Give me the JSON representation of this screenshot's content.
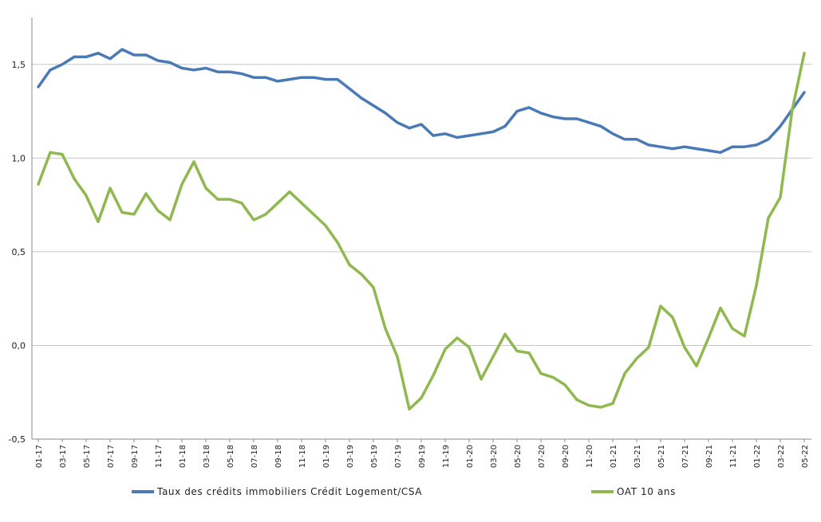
{
  "chart_data": {
    "type": "line",
    "title": "",
    "xlabel": "",
    "ylabel": "",
    "ylim": [
      -0.5,
      1.75
    ],
    "yticks": [
      "-0,5",
      "0,0",
      "0,5",
      "1,0",
      "1,5"
    ],
    "ytick_values": [
      -0.5,
      0.0,
      0.5,
      1.0,
      1.5
    ],
    "grid": true,
    "legend_position": "bottom",
    "x": [
      "01-17",
      "02-17",
      "03-17",
      "04-17",
      "05-17",
      "06-17",
      "07-17",
      "08-17",
      "09-17",
      "10-17",
      "11-17",
      "12-17",
      "01-18",
      "02-18",
      "03-18",
      "04-18",
      "05-18",
      "06-18",
      "07-18",
      "08-18",
      "09-18",
      "10-18",
      "11-18",
      "12-18",
      "01-19",
      "02-19",
      "03-19",
      "04-19",
      "05-19",
      "06-19",
      "07-19",
      "08-19",
      "09-19",
      "10-19",
      "11-19",
      "12-19",
      "01-20",
      "02-20",
      "03-20",
      "04-20",
      "05-20",
      "06-20",
      "07-20",
      "08-20",
      "09-20",
      "10-20",
      "11-20",
      "12-20",
      "01-21",
      "02-21",
      "03-21",
      "04-21",
      "05-21",
      "06-21",
      "07-21",
      "08-21",
      "09-21",
      "10-21",
      "11-21",
      "12-21",
      "01-22",
      "02-22",
      "03-22",
      "04-22",
      "05-22"
    ],
    "xtick_labels": [
      "01-17",
      "03-17",
      "05-17",
      "07-17",
      "09-17",
      "11-17",
      "01-18",
      "03-18",
      "05-18",
      "07-18",
      "09-18",
      "11-18",
      "01-19",
      "03-19",
      "05-19",
      "07-19",
      "09-19",
      "11-19",
      "01-20",
      "03-20",
      "05-20",
      "07-20",
      "09-20",
      "11-20",
      "01-21",
      "03-21",
      "05-21",
      "07-21",
      "09-21",
      "11-21",
      "01-22",
      "03-22",
      "05-22"
    ],
    "series": [
      {
        "name": "Taux des crédits immobiliers Crédit Logement/CSA",
        "color": "#4a7ab5",
        "values": [
          1.38,
          1.47,
          1.5,
          1.54,
          1.54,
          1.56,
          1.53,
          1.58,
          1.55,
          1.55,
          1.52,
          1.51,
          1.48,
          1.47,
          1.48,
          1.46,
          1.46,
          1.45,
          1.43,
          1.43,
          1.41,
          1.42,
          1.43,
          1.43,
          1.42,
          1.42,
          1.37,
          1.32,
          1.28,
          1.24,
          1.19,
          1.16,
          1.18,
          1.12,
          1.13,
          1.11,
          1.12,
          1.13,
          1.14,
          1.17,
          1.25,
          1.27,
          1.24,
          1.22,
          1.21,
          1.21,
          1.19,
          1.17,
          1.13,
          1.1,
          1.1,
          1.07,
          1.06,
          1.05,
          1.06,
          1.05,
          1.04,
          1.03,
          1.06,
          1.06,
          1.07,
          1.1,
          1.17,
          1.26,
          1.35
        ]
      },
      {
        "name": "OAT 10 ans",
        "color": "#8fb84e",
        "values": [
          0.86,
          1.03,
          1.02,
          0.89,
          0.8,
          0.66,
          0.84,
          0.71,
          0.7,
          0.81,
          0.72,
          0.67,
          0.86,
          0.98,
          0.84,
          0.78,
          0.78,
          0.76,
          0.67,
          0.7,
          0.76,
          0.82,
          0.76,
          0.7,
          0.64,
          0.55,
          0.43,
          0.38,
          0.31,
          0.09,
          -0.06,
          -0.34,
          -0.28,
          -0.16,
          -0.02,
          0.04,
          -0.01,
          -0.18,
          -0.06,
          0.06,
          -0.03,
          -0.04,
          -0.15,
          -0.17,
          -0.21,
          -0.29,
          -0.32,
          -0.33,
          -0.31,
          -0.15,
          -0.07,
          -0.01,
          0.21,
          0.15,
          -0.01,
          -0.11,
          0.04,
          0.2,
          0.09,
          0.05,
          0.32,
          0.68,
          0.79,
          1.26,
          1.56
        ]
      }
    ]
  }
}
